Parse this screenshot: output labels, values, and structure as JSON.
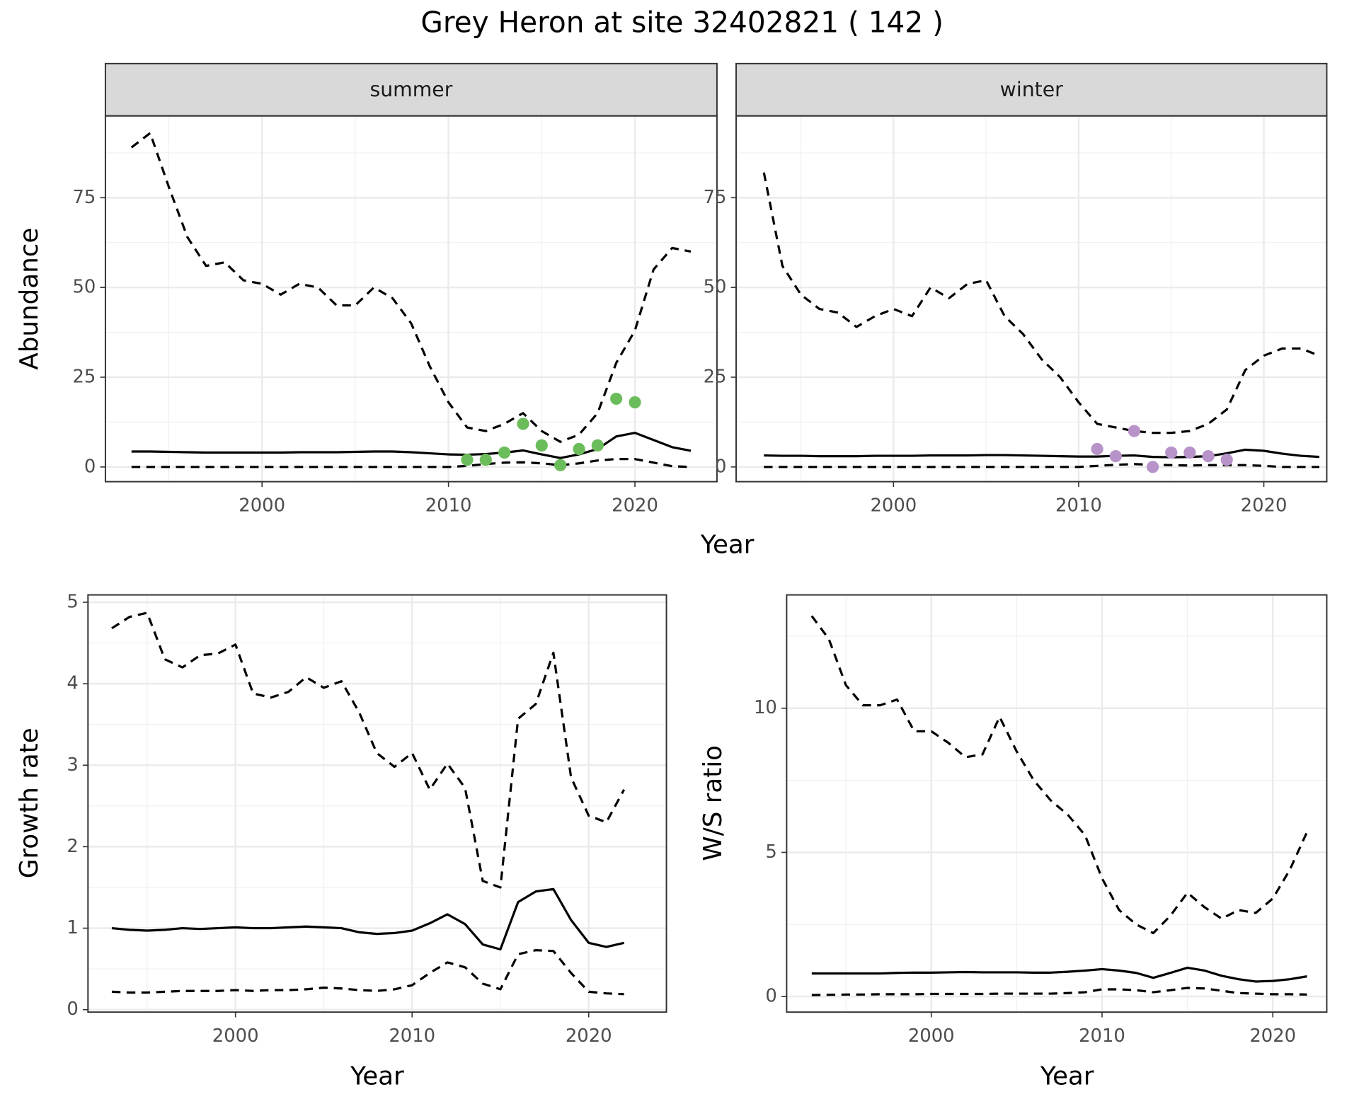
{
  "title": "Grey Heron at site 32402821 ( 142 )",
  "chart_data": [
    {
      "type": "line",
      "strip": "summer",
      "ylabel": "Abundance",
      "xlabel": "Year",
      "xlim": [
        1991.6,
        2024.4
      ],
      "xticks": [
        2000,
        2010,
        2020
      ],
      "ylim": [
        -4.1,
        97.8
      ],
      "yticks": [
        0,
        25,
        50,
        75
      ],
      "grid": true,
      "x": [
        1993,
        1994,
        1995,
        1996,
        1997,
        1998,
        1999,
        2000,
        2001,
        2002,
        2003,
        2004,
        2005,
        2006,
        2007,
        2008,
        2009,
        2010,
        2011,
        2012,
        2013,
        2014,
        2015,
        2016,
        2017,
        2018,
        2019,
        2020,
        2021,
        2022,
        2023
      ],
      "series": [
        {
          "style": "dashed",
          "color": "#000000",
          "values": [
            89,
            93,
            78,
            64,
            56,
            57,
            52,
            51,
            48,
            51,
            50,
            45,
            45,
            50,
            47,
            40,
            28,
            18,
            11,
            10,
            12,
            15,
            10,
            7,
            9,
            15,
            29,
            38,
            55,
            61,
            60
          ]
        },
        {
          "style": "solid",
          "color": "#000000",
          "values": [
            4.3,
            4.3,
            4.2,
            4.1,
            4.0,
            4.0,
            4.0,
            4.0,
            4.0,
            4.1,
            4.1,
            4.1,
            4.2,
            4.3,
            4.3,
            4.1,
            3.8,
            3.5,
            3.4,
            3.6,
            4.0,
            4.6,
            3.5,
            2.5,
            3.5,
            5.0,
            8.5,
            9.5,
            7.5,
            5.5,
            4.5
          ]
        },
        {
          "style": "dashed",
          "color": "#000000",
          "values": [
            0,
            0,
            0,
            0,
            0,
            0,
            0,
            0,
            0,
            0,
            0,
            0,
            0,
            0,
            0,
            0,
            0,
            0,
            0.3,
            0.8,
            1.2,
            1.3,
            1.0,
            0.5,
            1.0,
            1.8,
            2.2,
            2.2,
            1.2,
            0.2,
            0
          ]
        },
        {
          "style": "points",
          "color": "#6bbd5b",
          "x": [
            2011,
            2012,
            2013,
            2014,
            2015,
            2016,
            2017,
            2018,
            2019,
            2020
          ],
          "values": [
            2,
            2,
            4,
            12,
            6,
            0.5,
            5,
            6,
            19,
            18
          ]
        }
      ]
    },
    {
      "type": "line",
      "strip": "winter",
      "xlim": [
        1991.5,
        2023.4
      ],
      "xticks": [
        2000,
        2010,
        2020
      ],
      "ylim": [
        -4.1,
        97.8
      ],
      "yticks": [
        0,
        25,
        50,
        75
      ],
      "grid": true,
      "x": [
        1993,
        1994,
        1995,
        1996,
        1997,
        1998,
        1999,
        2000,
        2001,
        2002,
        2003,
        2004,
        2005,
        2006,
        2007,
        2008,
        2009,
        2010,
        2011,
        2012,
        2013,
        2014,
        2015,
        2016,
        2017,
        2018,
        2019,
        2020,
        2021,
        2022,
        2023
      ],
      "series": [
        {
          "style": "dashed",
          "color": "#000000",
          "values": [
            82,
            56,
            48,
            44,
            43,
            39,
            42,
            44,
            42,
            50,
            47,
            51,
            52,
            42,
            37,
            30,
            25,
            18,
            12,
            11,
            10,
            9.5,
            9.5,
            10,
            12,
            16,
            27,
            31,
            33,
            33,
            31
          ]
        },
        {
          "style": "solid",
          "color": "#000000",
          "values": [
            3.2,
            3.1,
            3.1,
            3.0,
            3.0,
            3.0,
            3.1,
            3.1,
            3.1,
            3.2,
            3.2,
            3.2,
            3.3,
            3.3,
            3.2,
            3.1,
            3.0,
            2.9,
            2.9,
            3.1,
            3.2,
            2.8,
            2.7,
            2.8,
            3.0,
            3.8,
            4.8,
            4.5,
            3.7,
            3.1,
            2.8
          ]
        },
        {
          "style": "dashed",
          "color": "#000000",
          "values": [
            0,
            0,
            0,
            0,
            0,
            0,
            0,
            0,
            0,
            0,
            0,
            0,
            0,
            0,
            0,
            0,
            0,
            0,
            0.3,
            0.6,
            0.8,
            0.6,
            0.5,
            0.4,
            0.5,
            0.5,
            0.5,
            0.3,
            0,
            0,
            0
          ]
        },
        {
          "style": "points",
          "color": "#b793c9",
          "x": [
            2011,
            2012,
            2013,
            2014,
            2015,
            2016,
            2017,
            2018
          ],
          "values": [
            5,
            3,
            10,
            0,
            4,
            4,
            3,
            2
          ]
        }
      ]
    },
    {
      "type": "line",
      "ylabel": "Growth rate",
      "xlabel": "Year",
      "xlim": [
        1991.65,
        2024.4
      ],
      "xticks": [
        2000,
        2010,
        2020
      ],
      "ylim": [
        -0.03,
        5.09
      ],
      "yticks": [
        0,
        1,
        2,
        3,
        4,
        5
      ],
      "grid": true,
      "x": [
        1993,
        1994,
        1995,
        1996,
        1997,
        1998,
        1999,
        2000,
        2001,
        2002,
        2003,
        2004,
        2005,
        2006,
        2007,
        2008,
        2009,
        2010,
        2011,
        2012,
        2013,
        2014,
        2015,
        2016,
        2017,
        2018,
        2019,
        2020,
        2021,
        2022
      ],
      "series": [
        {
          "style": "dashed",
          "color": "#000000",
          "values": [
            4.68,
            4.82,
            4.87,
            4.3,
            4.2,
            4.35,
            4.37,
            4.48,
            3.88,
            3.83,
            3.9,
            4.08,
            3.95,
            4.03,
            3.65,
            3.15,
            2.98,
            3.15,
            2.7,
            3.02,
            2.72,
            1.58,
            1.5,
            3.57,
            3.75,
            4.38,
            2.85,
            2.38,
            2.3,
            2.7
          ]
        },
        {
          "style": "solid",
          "color": "#000000",
          "values": [
            1.0,
            0.98,
            0.97,
            0.98,
            1.0,
            0.99,
            1.0,
            1.01,
            1.0,
            1.0,
            1.01,
            1.02,
            1.01,
            1.0,
            0.95,
            0.93,
            0.94,
            0.97,
            1.06,
            1.17,
            1.05,
            0.8,
            0.74,
            1.32,
            1.45,
            1.48,
            1.1,
            0.82,
            0.77,
            0.82
          ]
        },
        {
          "style": "dashed",
          "color": "#000000",
          "values": [
            0.22,
            0.21,
            0.21,
            0.22,
            0.23,
            0.23,
            0.23,
            0.24,
            0.23,
            0.24,
            0.24,
            0.25,
            0.27,
            0.26,
            0.24,
            0.23,
            0.25,
            0.3,
            0.45,
            0.58,
            0.52,
            0.32,
            0.25,
            0.68,
            0.73,
            0.72,
            0.45,
            0.22,
            0.2,
            0.19
          ]
        }
      ]
    },
    {
      "type": "line",
      "ylabel": "W/S ratio",
      "xlabel": "Year",
      "xlim": [
        1991.53,
        2023.16
      ],
      "xticks": [
        2000,
        2010,
        2020
      ],
      "ylim": [
        -0.54,
        13.93
      ],
      "yticks": [
        0,
        5,
        10
      ],
      "grid": true,
      "x": [
        1993,
        1994,
        1995,
        1996,
        1997,
        1998,
        1999,
        2000,
        2001,
        2002,
        2003,
        2004,
        2005,
        2006,
        2007,
        2008,
        2009,
        2010,
        2011,
        2012,
        2013,
        2014,
        2015,
        2016,
        2017,
        2018,
        2019,
        2020,
        2021,
        2022
      ],
      "series": [
        {
          "style": "dashed",
          "color": "#000000",
          "values": [
            13.2,
            12.4,
            10.8,
            10.1,
            10.1,
            10.3,
            9.2,
            9.2,
            8.8,
            8.3,
            8.4,
            9.7,
            8.5,
            7.5,
            6.8,
            6.3,
            5.6,
            4.1,
            3.0,
            2.5,
            2.2,
            2.8,
            3.6,
            3.1,
            2.7,
            3.0,
            2.9,
            3.4,
            4.4,
            5.7
          ]
        },
        {
          "style": "solid",
          "color": "#000000",
          "values": [
            0.8,
            0.8,
            0.8,
            0.8,
            0.8,
            0.82,
            0.83,
            0.83,
            0.84,
            0.85,
            0.84,
            0.84,
            0.84,
            0.83,
            0.83,
            0.86,
            0.9,
            0.95,
            0.9,
            0.82,
            0.65,
            0.82,
            1.0,
            0.9,
            0.72,
            0.6,
            0.52,
            0.54,
            0.6,
            0.7
          ]
        },
        {
          "style": "dashed",
          "color": "#000000",
          "values": [
            0.05,
            0.06,
            0.07,
            0.07,
            0.08,
            0.08,
            0.08,
            0.09,
            0.09,
            0.09,
            0.09,
            0.1,
            0.1,
            0.1,
            0.1,
            0.12,
            0.15,
            0.25,
            0.25,
            0.22,
            0.15,
            0.22,
            0.3,
            0.28,
            0.2,
            0.12,
            0.1,
            0.08,
            0.08,
            0.07
          ]
        }
      ]
    }
  ]
}
